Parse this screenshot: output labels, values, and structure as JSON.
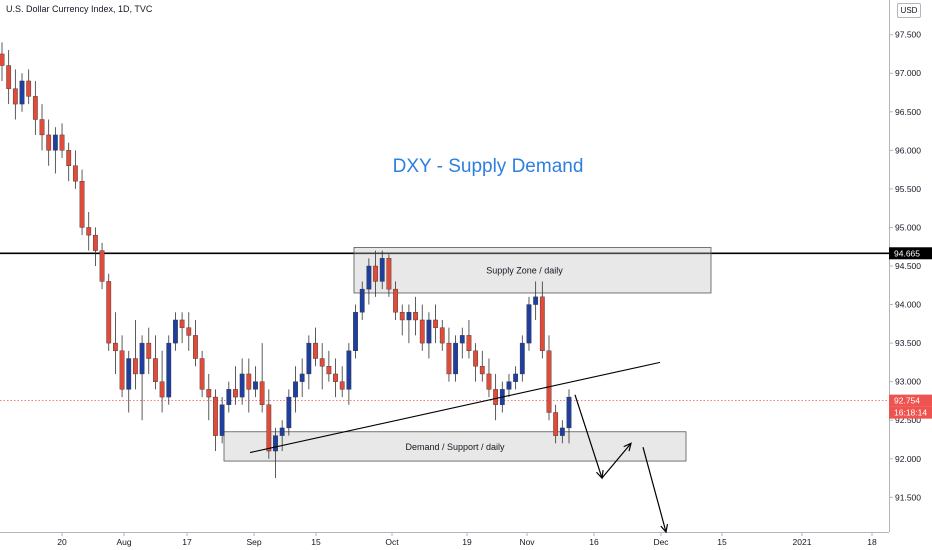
{
  "header": {
    "symbol_title": "U.S. Dollar Currency Index, 1D, TVC",
    "currency": "USD"
  },
  "chart_data": {
    "type": "candlestick",
    "title": "DXY - Supply Demand",
    "y_axis": {
      "ticks": [
        "97.500",
        "97.000",
        "96.500",
        "96.000",
        "95.500",
        "95.000",
        "94.500",
        "94.000",
        "93.500",
        "93.000",
        "92.500",
        "92.000",
        "91.500"
      ],
      "ylim": [
        91.05,
        97.95
      ]
    },
    "x_axis": {
      "ticks": [
        "20",
        "Aug",
        "17",
        "Sep",
        "15",
        "Oct",
        "19",
        "Nov",
        "16",
        "Dec",
        "15",
        "2021",
        "18"
      ]
    },
    "horizontal_level": {
      "value": 94.665,
      "label": "94.665"
    },
    "current_price": {
      "value": 92.754,
      "label": "92.754",
      "countdown": "16:18:14"
    },
    "zones": [
      {
        "name": "Supply Zone / daily",
        "from": 94.15,
        "to": 94.74
      },
      {
        "name": "Demand / Support / daily",
        "from": 91.97,
        "to": 92.35
      }
    ],
    "trendline": {
      "from": {
        "x": "Sep 1",
        "y": 92.08
      },
      "to": {
        "x": "Nov 26",
        "y": 93.25
      }
    },
    "projection_path": [
      {
        "x": "Nov 9",
        "y": 92.83
      },
      {
        "x": "Nov 16",
        "y": 91.75
      },
      {
        "x": "Nov 22",
        "y": 92.2
      },
      {
        "x": "Nov 26",
        "y": 92.15
      },
      {
        "x": "Dec 1",
        "y": 91.05
      }
    ],
    "candles": [
      [
        97.25,
        97.4,
        96.9,
        97.1
      ],
      [
        97.1,
        97.3,
        96.6,
        96.8
      ],
      [
        96.8,
        97.05,
        96.4,
        96.6
      ],
      [
        96.6,
        97.0,
        96.5,
        96.9
      ],
      [
        96.9,
        97.05,
        96.6,
        96.7
      ],
      [
        96.7,
        96.9,
        96.2,
        96.4
      ],
      [
        96.4,
        96.6,
        96.0,
        96.2
      ],
      [
        96.2,
        96.4,
        95.8,
        96.0
      ],
      [
        96.0,
        96.3,
        95.7,
        96.2
      ],
      [
        96.2,
        96.35,
        95.9,
        96.0
      ],
      [
        96.0,
        96.1,
        95.6,
        95.8
      ],
      [
        95.8,
        96.0,
        95.5,
        95.6
      ],
      [
        95.6,
        95.75,
        94.9,
        95.0
      ],
      [
        95.0,
        95.2,
        94.7,
        94.9
      ],
      [
        94.9,
        95.0,
        94.5,
        94.7
      ],
      [
        94.7,
        94.8,
        94.2,
        94.3
      ],
      [
        94.3,
        94.4,
        93.4,
        93.5
      ],
      [
        93.5,
        93.9,
        93.1,
        93.4
      ],
      [
        93.4,
        93.6,
        92.8,
        92.9
      ],
      [
        92.9,
        93.4,
        92.6,
        93.3
      ],
      [
        93.3,
        93.8,
        92.9,
        93.1
      ],
      [
        93.1,
        93.6,
        92.5,
        93.5
      ],
      [
        93.5,
        93.7,
        93.1,
        93.3
      ],
      [
        93.3,
        93.6,
        92.9,
        93.0
      ],
      [
        93.0,
        93.4,
        92.6,
        92.8
      ],
      [
        92.8,
        93.6,
        92.7,
        93.5
      ],
      [
        93.5,
        93.9,
        93.4,
        93.8
      ],
      [
        93.8,
        93.9,
        93.5,
        93.7
      ],
      [
        93.7,
        93.9,
        93.4,
        93.6
      ],
      [
        93.6,
        93.8,
        93.2,
        93.3
      ],
      [
        93.3,
        93.4,
        92.8,
        92.9
      ],
      [
        92.9,
        93.1,
        92.5,
        92.8
      ],
      [
        92.8,
        92.9,
        92.1,
        92.3
      ],
      [
        92.3,
        92.8,
        92.2,
        92.7
      ],
      [
        92.7,
        93.0,
        92.6,
        92.9
      ],
      [
        92.9,
        93.2,
        92.7,
        92.8
      ],
      [
        92.8,
        93.3,
        92.7,
        93.1
      ],
      [
        93.1,
        93.3,
        92.6,
        92.9
      ],
      [
        92.9,
        93.2,
        92.8,
        93.0
      ],
      [
        93.0,
        93.5,
        92.6,
        92.7
      ],
      [
        92.7,
        92.9,
        92.0,
        92.1
      ],
      [
        92.1,
        92.4,
        91.75,
        92.3
      ],
      [
        92.3,
        92.5,
        92.1,
        92.4
      ],
      [
        92.4,
        92.9,
        92.3,
        92.8
      ],
      [
        92.8,
        93.2,
        92.6,
        93.0
      ],
      [
        93.0,
        93.3,
        92.8,
        93.1
      ],
      [
        93.1,
        93.6,
        92.9,
        93.5
      ],
      [
        93.5,
        93.7,
        93.2,
        93.3
      ],
      [
        93.3,
        93.5,
        92.9,
        93.2
      ],
      [
        93.2,
        93.4,
        93.0,
        93.1
      ],
      [
        93.1,
        93.3,
        92.8,
        93.0
      ],
      [
        93.0,
        93.2,
        92.8,
        92.9
      ],
      [
        92.9,
        93.5,
        92.7,
        93.4
      ],
      [
        93.4,
        94.0,
        93.3,
        93.9
      ],
      [
        93.9,
        94.3,
        93.8,
        94.2
      ],
      [
        94.2,
        94.6,
        94.0,
        94.5
      ],
      [
        94.5,
        94.7,
        94.1,
        94.3
      ],
      [
        94.3,
        94.7,
        94.2,
        94.6
      ],
      [
        94.6,
        94.65,
        94.1,
        94.2
      ],
      [
        94.2,
        94.3,
        93.8,
        93.9
      ],
      [
        93.9,
        94.0,
        93.6,
        93.8
      ],
      [
        93.8,
        94.0,
        93.5,
        93.9
      ],
      [
        93.9,
        94.1,
        93.6,
        93.8
      ],
      [
        93.8,
        94.0,
        93.4,
        93.5
      ],
      [
        93.5,
        93.9,
        93.3,
        93.8
      ],
      [
        93.8,
        94.0,
        93.5,
        93.7
      ],
      [
        93.7,
        93.8,
        93.4,
        93.5
      ],
      [
        93.5,
        93.7,
        93.0,
        93.1
      ],
      [
        93.1,
        93.6,
        93.0,
        93.5
      ],
      [
        93.5,
        93.7,
        93.3,
        93.6
      ],
      [
        93.6,
        93.8,
        93.3,
        93.4
      ],
      [
        93.4,
        93.5,
        93.0,
        93.2
      ],
      [
        93.2,
        93.4,
        93.0,
        93.1
      ],
      [
        93.1,
        93.3,
        92.8,
        92.9
      ],
      [
        92.9,
        93.1,
        92.5,
        92.7
      ],
      [
        92.7,
        93.0,
        92.6,
        92.9
      ],
      [
        92.9,
        93.1,
        92.8,
        93.0
      ],
      [
        93.0,
        93.2,
        92.9,
        93.1
      ],
      [
        93.1,
        93.6,
        93.0,
        93.5
      ],
      [
        93.5,
        94.1,
        93.4,
        94.0
      ],
      [
        94.0,
        94.3,
        93.8,
        94.1
      ],
      [
        94.1,
        94.3,
        93.3,
        93.4
      ],
      [
        93.4,
        93.6,
        92.5,
        92.6
      ],
      [
        92.6,
        92.7,
        92.2,
        92.3
      ],
      [
        92.3,
        92.5,
        92.2,
        92.4
      ],
      [
        92.4,
        92.9,
        92.2,
        92.8
      ]
    ]
  }
}
